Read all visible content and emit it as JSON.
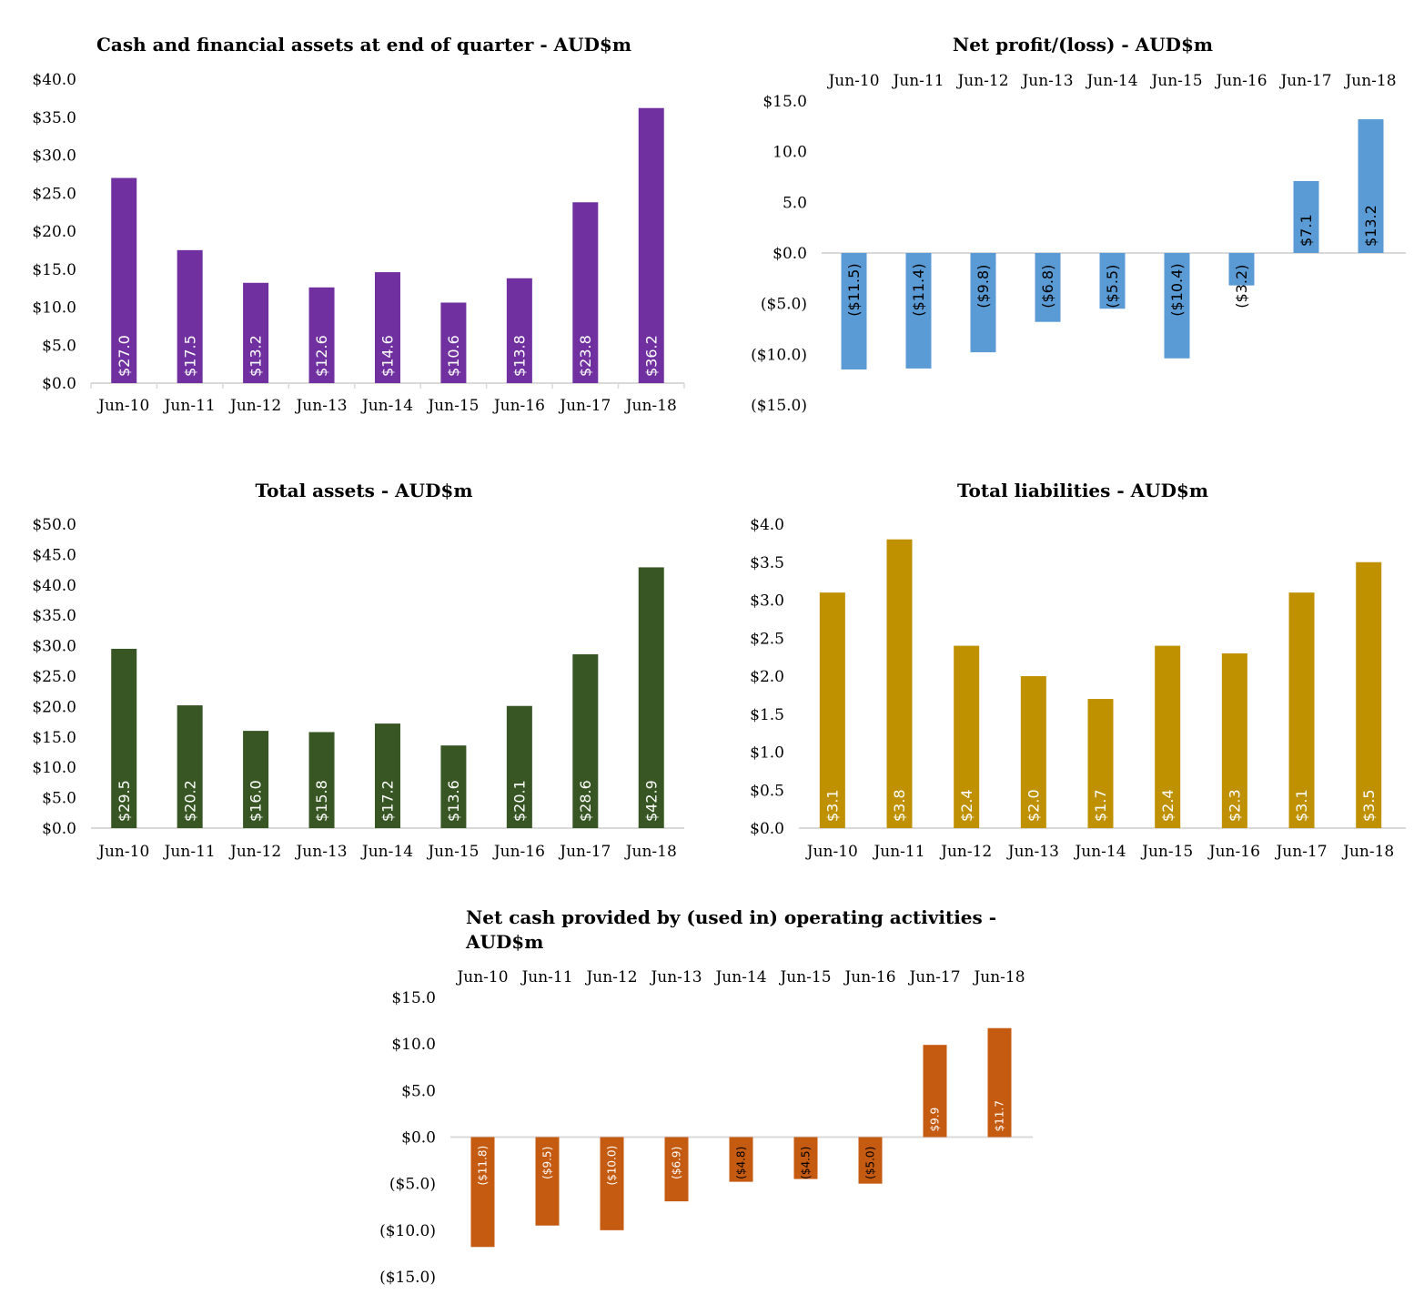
{
  "chart_data": [
    {
      "type": "bar",
      "title": "Cash and financial assets at end of quarter - AUD$m",
      "title_lines": [
        "Cash and financial assets at end of quarter - AUD$m"
      ],
      "categories": [
        "Jun-10",
        "Jun-11",
        "Jun-12",
        "Jun-13",
        "Jun-14",
        "Jun-15",
        "Jun-16",
        "Jun-17",
        "Jun-18"
      ],
      "values": [
        27.0,
        17.5,
        13.2,
        12.6,
        14.6,
        10.6,
        13.8,
        23.8,
        36.2
      ],
      "data_labels": [
        "$27.0",
        "$17.5",
        "$13.2",
        "$12.6",
        "$14.6",
        "$10.6",
        "$13.8",
        "$23.8",
        "$36.2"
      ],
      "y_ticks": [
        0,
        5,
        10,
        15,
        20,
        25,
        30,
        35,
        40
      ],
      "y_tick_labels": [
        "$0.0",
        "$5.0",
        "$10.0",
        "$15.0",
        "$20.0",
        "$25.0",
        "$30.0",
        "$35.0",
        "$40.0"
      ],
      "ylim": [
        0,
        40
      ],
      "xaxis_position": "bottom",
      "category_dividers": true,
      "color": "#7030A0",
      "label_color": "#ffffff",
      "grid": false,
      "legend": "none"
    },
    {
      "type": "bar",
      "title": "Net profit/(loss) - AUD$m",
      "title_lines": [
        "Net profit/(loss) - AUD$m"
      ],
      "categories": [
        "Jun-10",
        "Jun-11",
        "Jun-12",
        "Jun-13",
        "Jun-14",
        "Jun-15",
        "Jun-16",
        "Jun-17",
        "Jun-18"
      ],
      "values": [
        -11.5,
        -11.4,
        -9.8,
        -6.8,
        -5.5,
        -10.4,
        -3.2,
        7.1,
        13.2
      ],
      "data_labels": [
        "($11.5)",
        "($11.4)",
        "($9.8)",
        "($6.8)",
        "($5.5)",
        "($10.4)",
        "($3.2)",
        "$7.1",
        "$13.2"
      ],
      "y_ticks": [
        -15,
        -10,
        -5,
        0,
        5,
        10,
        15
      ],
      "y_tick_labels": [
        "($15.0)",
        "($10.0)",
        "($5.0)",
        "$0.0",
        "5.0",
        "10.0",
        "$15.0"
      ],
      "ylim": [
        -15,
        15
      ],
      "xaxis_position": "top",
      "category_dividers": false,
      "color": "#5B9BD5",
      "label_color": "#000000",
      "grid": false,
      "legend": "none"
    },
    {
      "type": "bar",
      "title": "Total assets - AUD$m",
      "title_lines": [
        "Total assets - AUD$m"
      ],
      "categories": [
        "Jun-10",
        "Jun-11",
        "Jun-12",
        "Jun-13",
        "Jun-14",
        "Jun-15",
        "Jun-16",
        "Jun-17",
        "Jun-18"
      ],
      "values": [
        29.5,
        20.2,
        16.0,
        15.8,
        17.2,
        13.6,
        20.1,
        28.6,
        42.9
      ],
      "data_labels": [
        "$29.5",
        "$20.2",
        "$16.0",
        "$15.8",
        "$17.2",
        "$13.6",
        "$20.1",
        "$28.6",
        "$42.9"
      ],
      "y_ticks": [
        0,
        5,
        10,
        15,
        20,
        25,
        30,
        35,
        40,
        45,
        50
      ],
      "y_tick_labels": [
        "$0.0",
        "$5.0",
        "$10.0",
        "$15.0",
        "$20.0",
        "$25.0",
        "$30.0",
        "$35.0",
        "$40.0",
        "$45.0",
        "$50.0"
      ],
      "ylim": [
        0,
        50
      ],
      "xaxis_position": "bottom",
      "category_dividers": false,
      "color": "#375623",
      "label_color": "#ffffff",
      "grid": false,
      "legend": "none"
    },
    {
      "type": "bar",
      "title": "Total liabilities - AUD$m",
      "title_lines": [
        "Total liabilities - AUD$m"
      ],
      "categories": [
        "Jun-10",
        "Jun-11",
        "Jun-12",
        "Jun-13",
        "Jun-14",
        "Jun-15",
        "Jun-16",
        "Jun-17",
        "Jun-18"
      ],
      "values": [
        3.1,
        3.8,
        2.4,
        2.0,
        1.7,
        2.4,
        2.3,
        3.1,
        3.5
      ],
      "data_labels": [
        "$3.1",
        "$3.8",
        "$2.4",
        "$2.0",
        "$1.7",
        "$2.4",
        "$2.3",
        "$3.1",
        "$3.5"
      ],
      "y_ticks": [
        0,
        0.5,
        1,
        1.5,
        2,
        2.5,
        3,
        3.5,
        4
      ],
      "y_tick_labels": [
        "$0.0",
        "$0.5",
        "$1.0",
        "$1.5",
        "$2.0",
        "$2.5",
        "$3.0",
        "$3.5",
        "$4.0"
      ],
      "ylim": [
        0,
        4
      ],
      "xaxis_position": "bottom",
      "category_dividers": false,
      "color": "#BF9000",
      "label_color": "#ffffff",
      "grid": false,
      "legend": "none"
    },
    {
      "type": "bar",
      "title": "Net cash provided by (used in) operating activities - AUD$m",
      "title_lines": [
        "Net cash provided by (used in) operating activities -",
        "AUD$m"
      ],
      "categories": [
        "Jun-10",
        "Jun-11",
        "Jun-12",
        "Jun-13",
        "Jun-14",
        "Jun-15",
        "Jun-16",
        "Jun-17",
        "Jun-18"
      ],
      "values": [
        -11.8,
        -9.5,
        -10.0,
        -6.9,
        -4.8,
        -4.5,
        -5.0,
        9.9,
        11.7
      ],
      "data_labels": [
        "($11.8)",
        "($9.5)",
        "($10.0)",
        "($6.9)",
        "($4.8)",
        "($4.5)",
        "($5.0)",
        "$9.9",
        "$11.7"
      ],
      "y_ticks": [
        -15,
        -10,
        -5,
        0,
        5,
        10,
        15
      ],
      "y_tick_labels": [
        "($15.0)",
        "($10.0)",
        "($5.0)",
        "$0.0",
        "$5.0",
        "$10.0",
        "$15.0"
      ],
      "ylim": [
        -15,
        15
      ],
      "xaxis_position": "top",
      "category_dividers": false,
      "color": "#C55A11",
      "label_color": "#ffffff",
      "grid": false,
      "legend": "none"
    }
  ]
}
